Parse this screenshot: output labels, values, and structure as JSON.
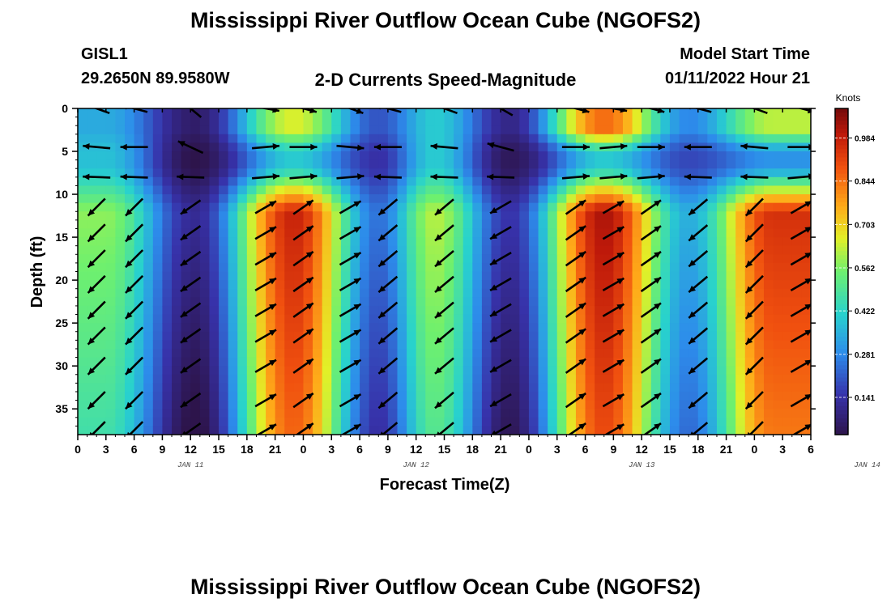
{
  "header": {
    "title": "Mississippi River Outflow Ocean Cube (NGOFS2)",
    "station": "GISL1",
    "coords": "29.2650N  89.9580W",
    "subtitle": "2-D Currents Speed-Magnitude",
    "model_start_label": "Model Start Time",
    "model_start_value": "01/11/2022 Hour 21"
  },
  "footer": {
    "title": "Mississippi River Outflow Ocean Cube (NGOFS2)"
  },
  "chart_data": {
    "type": "heatmap",
    "xlabel": "Forecast Time(Z)",
    "ylabel": "Depth (ft)",
    "x_tick_labels": [
      "0",
      "3",
      "6",
      "9",
      "12",
      "15",
      "18",
      "21",
      "0",
      "3",
      "6",
      "9",
      "12",
      "15",
      "18",
      "21",
      "0",
      "3",
      "6",
      "9",
      "12",
      "15",
      "18",
      "21",
      "0",
      "3",
      "6"
    ],
    "day_labels": [
      {
        "label": "JAN 11",
        "hour": 12
      },
      {
        "label": "JAN 12",
        "hour": 36
      },
      {
        "label": "JAN 13",
        "hour": 60
      },
      {
        "label": "JAN 14",
        "hour": 84
      }
    ],
    "x_range_hours": [
      0,
      78
    ],
    "ylim": [
      0,
      38
    ],
    "y_ticks": [
      0,
      5,
      10,
      15,
      20,
      25,
      30,
      35
    ],
    "colorbar": {
      "title": "Knots",
      "ticks": [
        "0.984",
        "0.844",
        "0.703",
        "0.562",
        "0.422",
        "0.281",
        "0.141"
      ],
      "range": [
        0.02,
        1.08
      ]
    },
    "speed_peaks_knots": [
      {
        "hour": 3,
        "surface": 0.34,
        "mid": 0.38,
        "deep": 0.58
      },
      {
        "hour": 12.5,
        "surface": 0.06,
        "mid": 0.02,
        "deep": 0.12
      },
      {
        "hour": 23,
        "surface": 0.65,
        "mid": 0.4,
        "deep": 0.98
      },
      {
        "hour": 32,
        "surface": 0.2,
        "mid": 0.14,
        "deep": 0.25
      },
      {
        "hour": 38,
        "surface": 0.4,
        "mid": 0.4,
        "deep": 0.62
      },
      {
        "hour": 46,
        "surface": 0.1,
        "mid": 0.04,
        "deep": 0.15
      },
      {
        "hour": 56,
        "surface": 0.85,
        "mid": 0.4,
        "deep": 1.02
      },
      {
        "hour": 65,
        "surface": 0.28,
        "mid": 0.18,
        "deep": 0.35
      },
      {
        "hour": 74,
        "surface": 0.62,
        "mid": 0.3,
        "deep": 0.95
      }
    ],
    "vector_depths_ft": [
      0,
      4.5,
      8,
      11.5,
      14.5,
      17.5,
      20.5,
      23.5,
      26.5,
      30,
      34,
      37.5
    ],
    "vector_columns": [
      {
        "hour": 2,
        "surface_dir": 200,
        "deep_dir": 135
      },
      {
        "hour": 6,
        "surface_dir": 195,
        "deep_dir": 135
      },
      {
        "hour": 12,
        "surface_dir": 220,
        "deep_dir": 145
      },
      {
        "hour": 20,
        "surface_dir": 10,
        "deep_dir": 330
      },
      {
        "hour": 24,
        "surface_dir": 15,
        "deep_dir": 325
      },
      {
        "hour": 29,
        "surface_dir": 20,
        "deep_dir": 330
      },
      {
        "hour": 33,
        "surface_dir": 195,
        "deep_dir": 140
      },
      {
        "hour": 39,
        "surface_dir": 200,
        "deep_dir": 140
      },
      {
        "hour": 45,
        "surface_dir": 210,
        "deep_dir": 150
      },
      {
        "hour": 53,
        "surface_dir": 15,
        "deep_dir": 325
      },
      {
        "hour": 57,
        "surface_dir": 10,
        "deep_dir": 330
      },
      {
        "hour": 61,
        "surface_dir": 15,
        "deep_dir": 325
      },
      {
        "hour": 66,
        "surface_dir": 195,
        "deep_dir": 140
      },
      {
        "hour": 72,
        "surface_dir": 200,
        "deep_dir": 135
      },
      {
        "hour": 77,
        "surface_dir": 15,
        "deep_dir": 330
      }
    ]
  }
}
